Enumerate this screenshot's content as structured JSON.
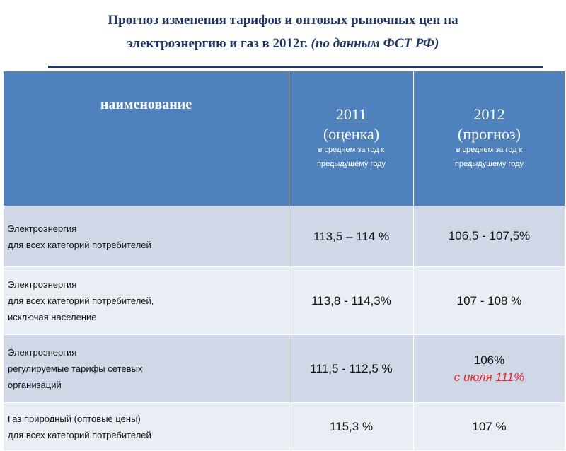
{
  "title": {
    "line1": "Прогноз изменения тарифов и оптовых рыночных  цен на",
    "line2_main": "электроэнергию и газ в 2012г.",
    "line2_italic": "(по данным ФСТ РФ)"
  },
  "table": {
    "headers": {
      "name": "наименование",
      "col2011_year": "2011",
      "col2011_label": "(оценка)",
      "col2011_sub1": "в среднем за год к",
      "col2011_sub2": "предыдущему году",
      "col2012_year": "2012",
      "col2012_label": "(прогноз)",
      "col2012_sub1": "в среднем за год к",
      "col2012_sub2": "предыдущему году"
    },
    "rows": [
      {
        "name1": "Электроэнергия",
        "name2": "для всех категорий потребителей",
        "name3": "",
        "v2011": "113,5  – 114 %",
        "v2012": "106,5 - 107,5%",
        "v2012_note": ""
      },
      {
        "name1": "Электроэнергия",
        "name2": "для всех категорий потребителей,",
        "name3": "исключая население",
        "v2011": "113,8   - 114,3%",
        "v2012": "107  - 108 %",
        "v2012_note": ""
      },
      {
        "name1": "Электроэнергия",
        "name2": "регулируемые тарифы сетевых",
        "name3": "организаций",
        "v2011": "111,5 -   112,5 %",
        "v2012": "106%",
        "v2012_note": "с июля 111%"
      },
      {
        "name1": "Газ природный (оптовые цены)",
        "name2": "для всех категорий потребителей",
        "name3": "",
        "v2011": "115,3 %",
        "v2012": "107 %",
        "v2012_note": ""
      }
    ]
  },
  "colors": {
    "header_bg": "#4f81bd",
    "row_bg": "#d0d8e8",
    "row_alt_bg": "#e9edf4",
    "title_color": "#1f3864",
    "note_color": "#e2262b"
  }
}
